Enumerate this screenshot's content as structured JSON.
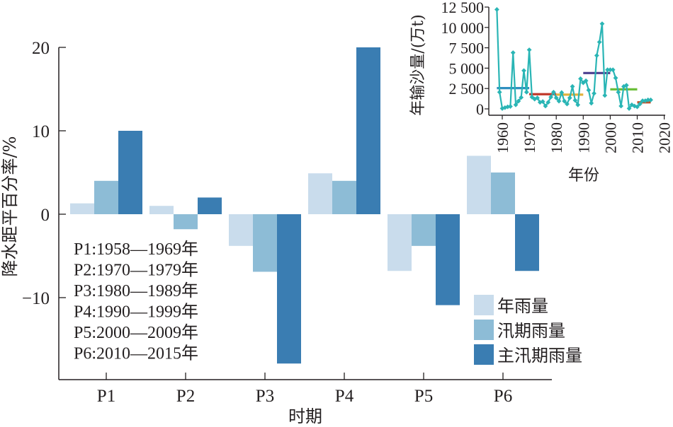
{
  "chart_data": [
    {
      "type": "bar",
      "title": "",
      "xlabel": "时期",
      "ylabel": "降水距平百分率/%",
      "categories": [
        "P1",
        "P2",
        "P3",
        "P4",
        "P5",
        "P6"
      ],
      "ylim": [
        -19,
        20
      ],
      "yticks": [
        -10,
        0,
        10,
        20
      ],
      "yticks_labels": [
        "−10",
        "0",
        "10",
        "20"
      ],
      "grid": false,
      "legend_position": "bottom-right",
      "series": [
        {
          "name": "年雨量",
          "color": "#c9dcec",
          "values": [
            1.3,
            1.0,
            -3.8,
            4.9,
            -6.8,
            7.0
          ]
        },
        {
          "name": "汛期雨量",
          "color": "#8dbcd6",
          "values": [
            4.0,
            -1.8,
            -6.9,
            4.0,
            -3.8,
            5.0
          ]
        },
        {
          "name": "主汛期雨量",
          "color": "#3a7db2",
          "values": [
            10.0,
            2.0,
            -17.9,
            20.0,
            -10.9,
            -6.8
          ]
        }
      ],
      "annotations": [
        "P1:1958—1969年",
        "P2:1970—1979年",
        "P3:1980—1989年",
        "P4:1990—1999年",
        "P5:2000—2009年",
        "P6:2010—2015年"
      ]
    },
    {
      "type": "line",
      "title": "",
      "xlabel": "年份",
      "ylabel": "年输沙量/(万t)",
      "xlim": [
        1955,
        2020
      ],
      "ylim": [
        0,
        12500
      ],
      "xticks": [
        1960,
        1970,
        1980,
        1990,
        2000,
        2010,
        2020
      ],
      "yticks": [
        0,
        2500,
        5000,
        7500,
        10000,
        12500
      ],
      "yticks_labels": [
        "0",
        "2 500",
        "5 000",
        "7 500",
        "10 000",
        "12 500"
      ],
      "grid": false,
      "line_color": "#2ab5b5",
      "x": [
        1958,
        1959,
        1960,
        1961,
        1962,
        1963,
        1964,
        1965,
        1966,
        1967,
        1968,
        1969,
        1970,
        1971,
        1972,
        1973,
        1974,
        1975,
        1976,
        1977,
        1978,
        1979,
        1980,
        1981,
        1982,
        1983,
        1984,
        1985,
        1986,
        1987,
        1988,
        1989,
        1990,
        1991,
        1992,
        1993,
        1994,
        1995,
        1996,
        1997,
        1998,
        1999,
        2000,
        2001,
        2002,
        2003,
        2004,
        2005,
        2006,
        2007,
        2008,
        2009,
        2010,
        2011,
        2012,
        2013,
        2014,
        2015
      ],
      "y": [
        12200,
        2050,
        50,
        150,
        250,
        300,
        6900,
        500,
        950,
        1400,
        4700,
        2050,
        7250,
        1450,
        1200,
        1350,
        800,
        900,
        350,
        800,
        1450,
        2050,
        1350,
        950,
        2000,
        950,
        600,
        1350,
        2750,
        1050,
        500,
        3700,
        3200,
        3450,
        2300,
        700,
        1900,
        6550,
        8200,
        10450,
        1650,
        4800,
        4800,
        4800,
        3800,
        2050,
        350,
        2750,
        2900,
        50,
        500,
        350,
        250,
        600,
        1000,
        1000,
        1100,
        1100
      ],
      "period_means": [
        {
          "period": "P1",
          "start": 1958,
          "end": 1970,
          "value": 2550,
          "color": "#2f8fc0"
        },
        {
          "period": "P2",
          "start": 1970,
          "end": 1980,
          "value": 1800,
          "color": "#c0392b"
        },
        {
          "period": "P3",
          "start": 1980,
          "end": 1990,
          "value": 1750,
          "color": "#e3b23c"
        },
        {
          "period": "P4",
          "start": 1990,
          "end": 2000,
          "value": 4400,
          "color": "#4b3f8f"
        },
        {
          "period": "P5",
          "start": 2000,
          "end": 2010,
          "value": 2400,
          "color": "#6cbf3a"
        },
        {
          "period": "P6",
          "start": 2010,
          "end": 2015,
          "value": 800,
          "color": "#c0502b"
        }
      ]
    }
  ]
}
